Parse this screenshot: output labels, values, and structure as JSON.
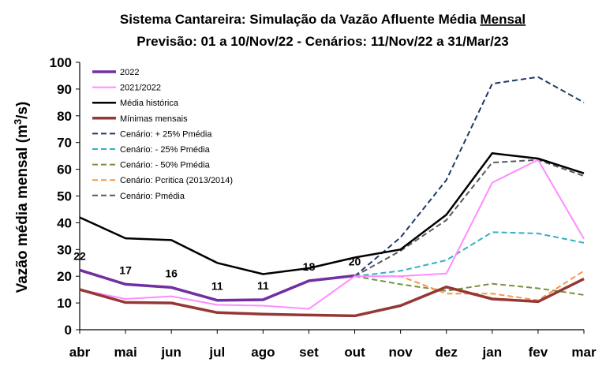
{
  "chart_data": {
    "type": "line",
    "title_parts": [
      "Sistema Cantareira: Simulação da Vazão Afluente Média ",
      "Mensal"
    ],
    "subtitle": "Previsão: 01 a 10/Nov/22 - Cenários: 11/Nov/22 a 31/Mar/23",
    "ylabel": "Vazão média mensal (m",
    "ylabel_sup": "3",
    "ylabel_end": "/s)",
    "ylim": [
      0,
      100
    ],
    "yticks": [
      0,
      10,
      20,
      30,
      40,
      50,
      60,
      70,
      80,
      90,
      100
    ],
    "ytick_labels": [
      "0",
      "10",
      "20",
      "30",
      "40",
      "50",
      "60",
      "70",
      "80",
      "90",
      "100"
    ],
    "categories": [
      "abr",
      "mai",
      "jun",
      "jul",
      "ago",
      "set",
      "out",
      "nov",
      "dez",
      "jan",
      "fev",
      "mar"
    ],
    "grid": false,
    "legend_position": "top-left",
    "series": [
      {
        "name": "2022",
        "color": "#7030A0",
        "dash": "solid",
        "width": 3.5,
        "values": [
          22.3,
          17.0,
          15.8,
          11.0,
          11.2,
          18.3,
          20.2,
          null,
          null,
          null,
          null,
          null
        ],
        "labels": [
          "22",
          "17",
          "16",
          "11",
          "11",
          "18",
          "20",
          null,
          null,
          null,
          null,
          null
        ]
      },
      {
        "name": "2021/2022",
        "color": "#FF8CFF",
        "dash": "solid",
        "width": 2,
        "values": [
          15.0,
          11.5,
          12.5,
          9.3,
          9.0,
          7.8,
          20.0,
          20.0,
          21.0,
          55.0,
          63.5,
          34.0
        ]
      },
      {
        "name": "Média histórica",
        "color": "#000000",
        "dash": "solid",
        "width": 2.5,
        "values": [
          42.0,
          34.2,
          33.5,
          25.0,
          20.8,
          23.0,
          27.0,
          30.0,
          43.0,
          66.0,
          64.0,
          58.5
        ]
      },
      {
        "name": "Mínimas mensais",
        "color": "#953735",
        "dash": "solid",
        "width": 3.5,
        "values": [
          15.0,
          10.2,
          10.0,
          6.4,
          5.8,
          5.5,
          5.2,
          9.0,
          16.0,
          11.5,
          10.5,
          19.0
        ]
      },
      {
        "name": "Cenário: + 25% Pmédia",
        "color": "#1F3864",
        "dash": "dash",
        "width": 2,
        "values": [
          null,
          null,
          null,
          null,
          null,
          null,
          20.0,
          34.5,
          56.0,
          92.0,
          94.5,
          85.0
        ]
      },
      {
        "name": "Cenário: - 25% Pmédia",
        "color": "#31B0C6",
        "dash": "dash",
        "width": 2,
        "values": [
          null,
          null,
          null,
          null,
          null,
          null,
          20.0,
          22.0,
          26.0,
          36.5,
          36.0,
          32.5
        ]
      },
      {
        "name": "Cenário: - 50% Pmédia",
        "color": "#76923C",
        "dash": "dash",
        "width": 2,
        "values": [
          null,
          null,
          null,
          null,
          null,
          null,
          20.0,
          17.0,
          14.5,
          17.2,
          15.5,
          13.0
        ]
      },
      {
        "name": "Cenário: Pcritica (2013/2014)",
        "color": "#F79646",
        "dash": "dash",
        "width": 2,
        "values": [
          null,
          null,
          null,
          null,
          null,
          null,
          20.0,
          20.0,
          13.5,
          13.5,
          11.0,
          22.0
        ]
      },
      {
        "name": "Cenário: Pmédia",
        "color": "#595959",
        "dash": "dash",
        "width": 2,
        "values": [
          null,
          null,
          null,
          null,
          null,
          null,
          20.0,
          29.5,
          41.0,
          62.5,
          63.5,
          57.5
        ]
      }
    ]
  }
}
